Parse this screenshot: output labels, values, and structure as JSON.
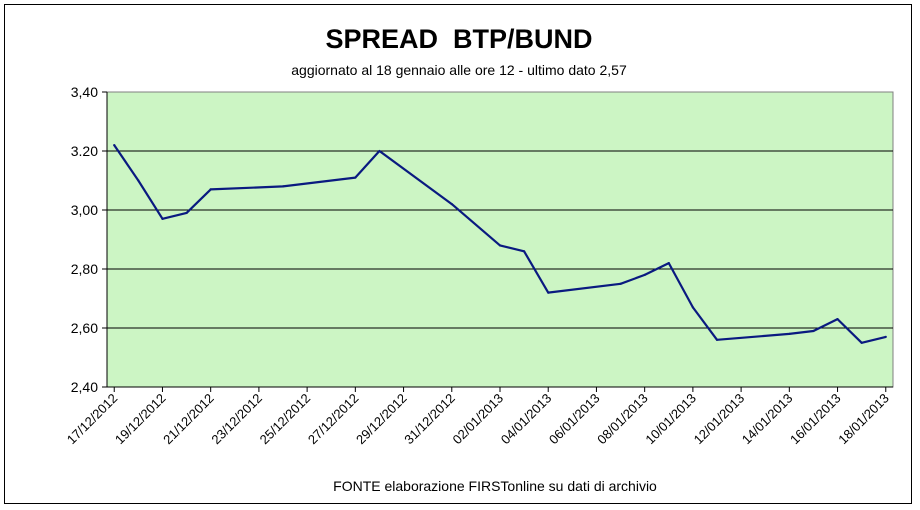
{
  "chart_data": {
    "type": "line",
    "title": "SPREAD  BTP/BUND",
    "subtitle": "aggiornato al 18 gennaio alle ore 12 - ultimo dato 2,57",
    "source": "FONTE elaborazione FIRSTonline su dati di archivio",
    "xlabel": "",
    "ylabel": "",
    "ylim": [
      2.4,
      3.4
    ],
    "yticks": [
      "2,40",
      "2,60",
      "2,80",
      "3,00",
      "3.20",
      "3,40"
    ],
    "ytick_values": [
      2.4,
      2.6,
      2.8,
      3.0,
      3.2,
      3.4
    ],
    "grid": true,
    "legend": "none",
    "colors": {
      "plot_bg": "#ccf5c4",
      "line": "#0a1a80",
      "grid": "#000000"
    },
    "x_start": "2012-12-17",
    "x_end": "2013-01-18",
    "xticks": [
      "17/12/2012",
      "19/12/2012",
      "21/12/2012",
      "23/12/2012",
      "25/12/2012",
      "27/12/2012",
      "29/12/2012",
      "31/12/2012",
      "02/01/2013",
      "04/01/2013",
      "06/01/2013",
      "08/01/2013",
      "10/01/2013",
      "12/01/2013",
      "14/01/2013",
      "16/01/2013",
      "18/01/2013"
    ],
    "series": [
      {
        "name": "",
        "points": [
          {
            "x": "2012-12-17",
            "y": 3.22
          },
          {
            "x": "2012-12-18",
            "y": 3.1
          },
          {
            "x": "2012-12-19",
            "y": 2.97
          },
          {
            "x": "2012-12-20",
            "y": 2.99
          },
          {
            "x": "2012-12-21",
            "y": 3.07
          },
          {
            "x": "2012-12-24",
            "y": 3.08
          },
          {
            "x": "2012-12-27",
            "y": 3.11
          },
          {
            "x": "2012-12-28",
            "y": 3.2
          },
          {
            "x": "2012-12-31",
            "y": 3.02
          },
          {
            "x": "2013-01-02",
            "y": 2.88
          },
          {
            "x": "2013-01-03",
            "y": 2.86
          },
          {
            "x": "2013-01-04",
            "y": 2.72
          },
          {
            "x": "2013-01-07",
            "y": 2.75
          },
          {
            "x": "2013-01-08",
            "y": 2.78
          },
          {
            "x": "2013-01-09",
            "y": 2.82
          },
          {
            "x": "2013-01-10",
            "y": 2.67
          },
          {
            "x": "2013-01-11",
            "y": 2.56
          },
          {
            "x": "2013-01-14",
            "y": 2.58
          },
          {
            "x": "2013-01-15",
            "y": 2.59
          },
          {
            "x": "2013-01-16",
            "y": 2.63
          },
          {
            "x": "2013-01-17",
            "y": 2.55
          },
          {
            "x": "2013-01-18",
            "y": 2.57
          }
        ]
      }
    ]
  }
}
